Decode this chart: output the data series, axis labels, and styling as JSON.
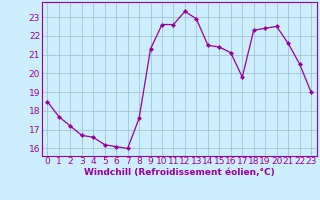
{
  "x": [
    0,
    1,
    2,
    3,
    4,
    5,
    6,
    7,
    8,
    9,
    10,
    11,
    12,
    13,
    14,
    15,
    16,
    17,
    18,
    19,
    20,
    21,
    22,
    23
  ],
  "y": [
    18.5,
    17.7,
    17.2,
    16.7,
    16.6,
    16.2,
    16.1,
    16.0,
    17.6,
    21.3,
    22.6,
    22.6,
    23.3,
    22.9,
    21.5,
    21.4,
    21.1,
    19.8,
    22.3,
    22.4,
    22.5,
    21.6,
    20.5,
    19.0
  ],
  "line_color": "#990099",
  "marker_color": "#990099",
  "bg_color": "#cceeff",
  "grid_color": "#99bbcc",
  "ylabel_ticks": [
    16,
    17,
    18,
    19,
    20,
    21,
    22,
    23
  ],
  "xlabel": "Windchill (Refroidissement éolien,°C)",
  "ylim": [
    15.6,
    23.8
  ],
  "xlim": [
    -0.5,
    23.5
  ],
  "font_color": "#990099",
  "tick_label_size": 6.5,
  "xlabel_size": 6.5
}
